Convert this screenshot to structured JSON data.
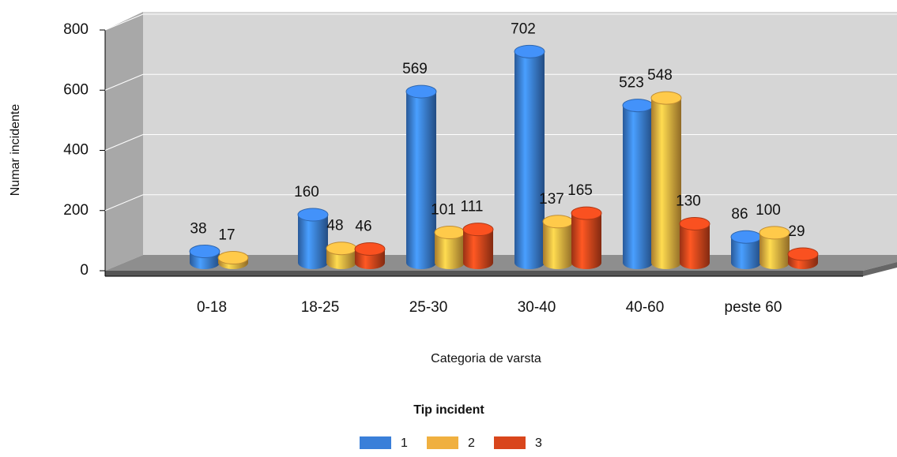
{
  "chart_data": {
    "type": "bar3d",
    "categories": [
      "0-18",
      "18-25",
      "25-30",
      "30-40",
      "40-60",
      "peste 60"
    ],
    "series": [
      {
        "name": "1",
        "color": "#3a7fd9",
        "values": [
          38,
          160,
          569,
          702,
          523,
          86
        ]
      },
      {
        "name": "2",
        "color": "#f0b040",
        "values": [
          17,
          48,
          101,
          137,
          548,
          100
        ]
      },
      {
        "name": "3",
        "color": "#d9461c",
        "values": [
          null,
          46,
          111,
          165,
          130,
          29
        ]
      }
    ],
    "ylim": [
      0,
      800
    ],
    "yticks": [
      0,
      200,
      400,
      600,
      800
    ],
    "grid": true,
    "y_label": "Numar incidente",
    "x_label": "Categoria de varsta",
    "legend_title": "Tip incident",
    "legend": "bottom"
  }
}
